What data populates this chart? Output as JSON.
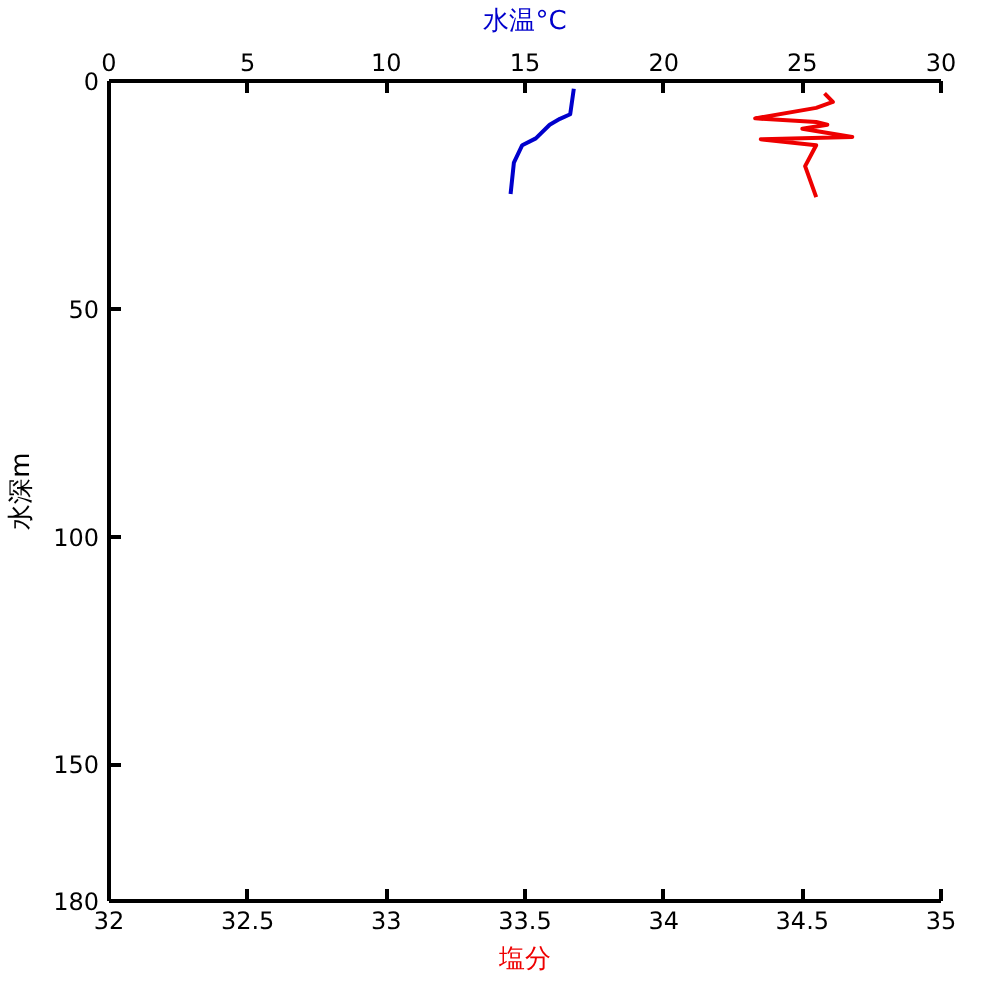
{
  "chart_data": {
    "type": "line",
    "xlabel": "塩分",
    "x2label": "水温°C",
    "ylabel": "水深m",
    "xlim": [
      32,
      35
    ],
    "xticks": [
      32,
      32.5,
      33,
      33.5,
      34,
      34.5,
      35
    ],
    "x2lim": [
      0,
      30
    ],
    "x2ticks": [
      0,
      5,
      10,
      15,
      20,
      25,
      30
    ],
    "ylim": [
      180,
      0
    ],
    "yticks": [
      0,
      50,
      100,
      150,
      180
    ],
    "grid": false,
    "marker": "none",
    "line_style": "solid",
    "series": [
      {
        "axis": "x2",
        "color": "#0000cc",
        "x": [
          16.76,
          16.63,
          16.26,
          15.89,
          15.39,
          14.9,
          14.6,
          14.48
        ],
        "values": [
          1.7,
          7.3,
          8.3,
          9.6,
          12.6,
          14.1,
          17.9,
          24.8
        ]
      },
      {
        "color": "#ee0000",
        "x": [
          34.58,
          34.61,
          34.55,
          34.33,
          34.55,
          34.59,
          34.5,
          34.68,
          34.35,
          34.55,
          34.51,
          34.55
        ],
        "values": [
          2.7,
          4.6,
          5.9,
          8.2,
          9.0,
          9.6,
          10.5,
          12.3,
          12.8,
          14.1,
          18.7,
          25.5
        ]
      }
    ]
  }
}
